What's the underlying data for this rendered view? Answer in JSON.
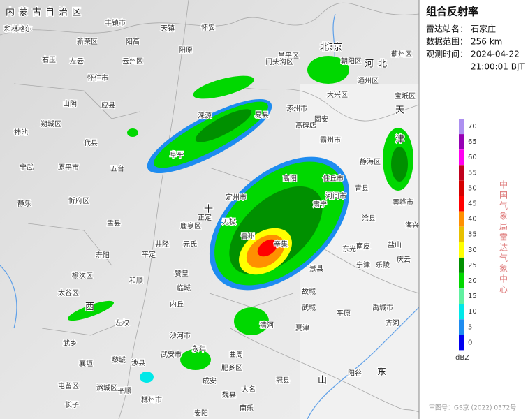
{
  "header": {
    "title": "组合反射率"
  },
  "info": [
    {
      "label": "雷达站名：",
      "lines": [
        "石家庄"
      ]
    },
    {
      "label": "数据范围：",
      "lines": [
        "256 km"
      ]
    },
    {
      "label": "观测时间：",
      "lines": [
        "2024-04-22",
        "21:00:01 BJT"
      ]
    }
  ],
  "legend": {
    "unit": "dBZ",
    "levels": [
      {
        "value": 70,
        "color": "#ad90f0"
      },
      {
        "value": 65,
        "color": "#9600b4"
      },
      {
        "value": 60,
        "color": "#ff00f0"
      },
      {
        "value": 55,
        "color": "#c0001e"
      },
      {
        "value": 50,
        "color": "#d60000"
      },
      {
        "value": 45,
        "color": "#ff0000"
      },
      {
        "value": 40,
        "color": "#ff9000"
      },
      {
        "value": 35,
        "color": "#e7c000"
      },
      {
        "value": 30,
        "color": "#ffff00"
      },
      {
        "value": 25,
        "color": "#009000"
      },
      {
        "value": 20,
        "color": "#00d800"
      },
      {
        "value": 15,
        "color": "#60f0a0"
      },
      {
        "value": 10,
        "color": "#00e8e8"
      },
      {
        "value": 5,
        "color": "#1e8cf0"
      },
      {
        "value": 0,
        "color": "#0000f0"
      }
    ]
  },
  "agency": "中国气象局雷达气象中心",
  "footer": "审图号：GS京 (2022) 0372号",
  "map": {
    "labels": [
      "内蒙古自治区",
      "和林格尔",
      "丰镇市",
      "天镇",
      "阳高",
      "阳原",
      "新荣区",
      "右玉",
      "左云",
      "云州区",
      "怀仁市",
      "应县",
      "山阴",
      "朔城区",
      "神池",
      "宁武",
      "代县",
      "五台",
      "原平市",
      "忻府区",
      "静乐",
      "盂县",
      "寿阳",
      "平定",
      "榆次区",
      "太谷区",
      "和顺",
      "左权",
      "武乡",
      "襄垣",
      "黎城",
      "涉县",
      "武安市",
      "怀安",
      "昌平区",
      "门头沟区",
      "京",
      "朝阳区",
      "通州区",
      "大兴区",
      "涿州市",
      "固安",
      "霸州市",
      "高碑店",
      "易县",
      "涞源",
      "阜平",
      "定州市",
      "高阳",
      "任丘市",
      "河间市",
      "肃宁",
      "无极",
      "正定",
      "鹿泉区",
      "元氏",
      "赞皇",
      "井陉",
      "晋州",
      "辛集",
      "沧县",
      "南皮",
      "东光",
      "景县",
      "宁津",
      "乐陵",
      "庆云",
      "盐山",
      "海兴",
      "黄骅市",
      "青县",
      "静海区",
      "天",
      "津",
      "河北",
      "宝坻区",
      "蓟州区",
      "冠县",
      "大名",
      "阳谷",
      "齐河",
      "禹城市",
      "平原",
      "夏津",
      "武城",
      "故城",
      "清河",
      "内丘",
      "临城",
      "沙河市",
      "永年",
      "曲周",
      "肥乡区",
      "成安",
      "魏县",
      "安阳",
      "林州市",
      "南乐",
      "山",
      "东",
      "长子",
      "屯留区",
      "潞城区",
      "平顺",
      "西",
      "北京",
      "十"
    ]
  }
}
